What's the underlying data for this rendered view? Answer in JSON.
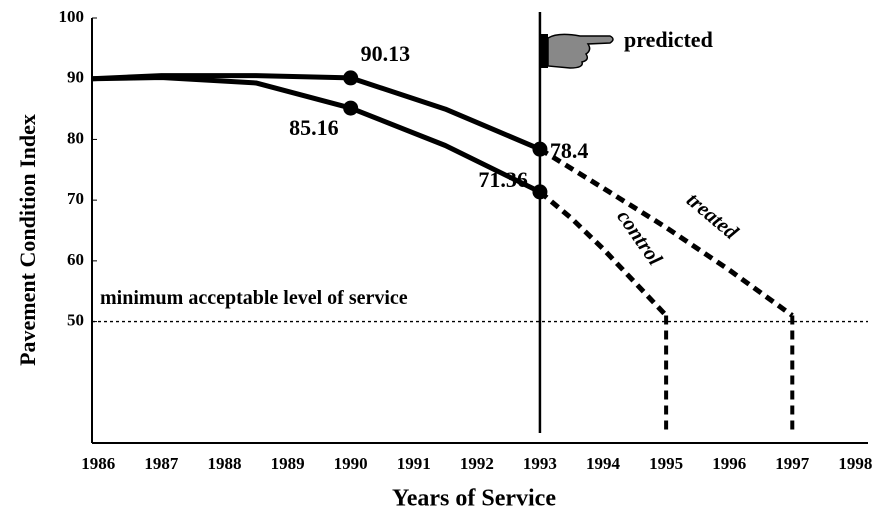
{
  "chart_data": {
    "type": "line",
    "y_label": "Pavement Condition Index",
    "x_label": "Years of Service",
    "xlim": [
      1985.9,
      1998.2
    ],
    "xticks": [
      1986,
      1987,
      1988,
      1989,
      1990,
      1991,
      1992,
      1993,
      1994,
      1995,
      1996,
      1997,
      1998
    ],
    "ylim": [
      30,
      100
    ],
    "yticks": [
      50,
      60,
      70,
      80,
      90,
      100
    ],
    "prediction_start": 1993,
    "prediction_label": "predicted",
    "threshold": {
      "value": 50,
      "label": "minimum acceptable level of service"
    },
    "series": [
      {
        "name": "treated",
        "color": "#000000",
        "x": [
          1985.9,
          1987,
          1988.5,
          1990,
          1991.5,
          1993,
          1994,
          1995,
          1996,
          1997
        ],
        "values": [
          90,
          90.5,
          90.5,
          90.13,
          85,
          78.4,
          72,
          65.5,
          58.5,
          51
        ],
        "marked": [
          3,
          5
        ]
      },
      {
        "name": "control",
        "color": "#000000",
        "x": [
          1985.9,
          1987,
          1988.5,
          1990,
          1991.5,
          1993,
          1993.5,
          1994,
          1994.5,
          1995
        ],
        "values": [
          90,
          90.2,
          89.3,
          85.16,
          79,
          71.36,
          67,
          62,
          56.5,
          51
        ],
        "marked": [
          3,
          5
        ]
      }
    ]
  }
}
